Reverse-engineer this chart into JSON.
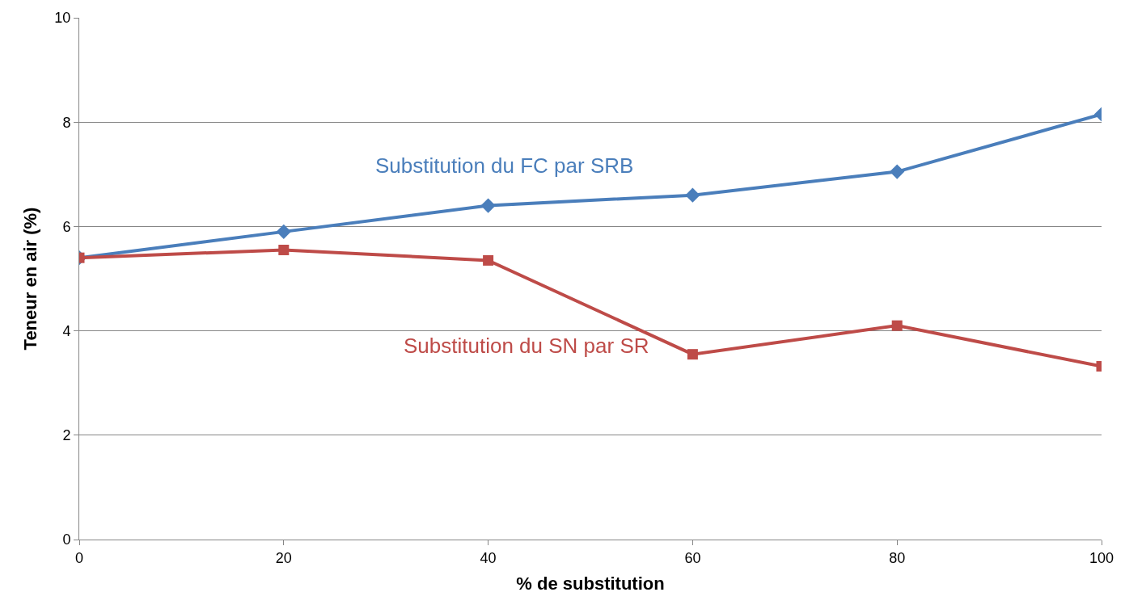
{
  "chart_data": {
    "type": "line",
    "xlabel": "% de substitution",
    "ylabel": "Teneur en air (%)",
    "x": [
      0,
      20,
      40,
      60,
      80,
      100
    ],
    "series": [
      {
        "name": "Substitution du FC par SRB",
        "color": "#4a7ebb",
        "marker": "diamond",
        "values": [
          5.4,
          5.9,
          6.4,
          6.6,
          7.05,
          8.15
        ]
      },
      {
        "name": "Substitution du SN par SR",
        "color": "#be4b48",
        "marker": "square",
        "values": [
          5.4,
          5.55,
          5.35,
          3.55,
          4.1,
          3.32
        ]
      }
    ],
    "xlim": [
      0,
      100
    ],
    "xticks": [
      0,
      20,
      40,
      60,
      80,
      100
    ],
    "ylim": [
      0,
      10
    ],
    "yticks": [
      0,
      2,
      4,
      6,
      8,
      10
    ],
    "grid": "y",
    "legend": false,
    "line_style": "solid"
  }
}
